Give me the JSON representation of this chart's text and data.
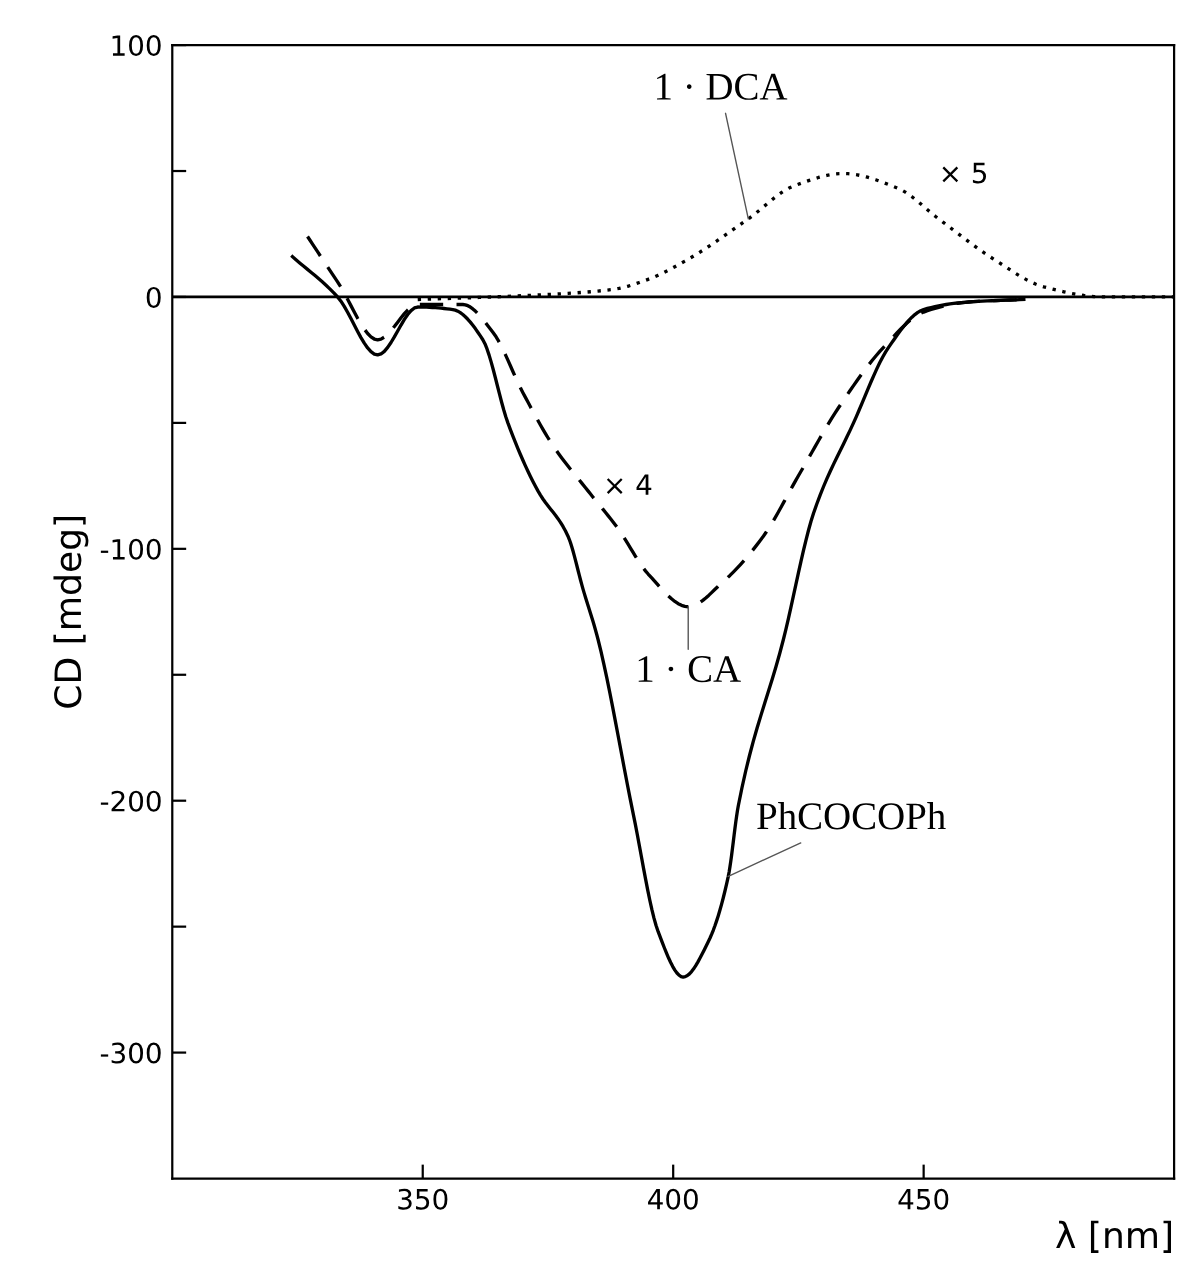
{
  "chart_data": {
    "type": "line",
    "xlabel": "λ [nm]",
    "ylabel": "CD [mdeg]",
    "xlim": [
      300,
      500
    ],
    "xticks": [
      350,
      400,
      450
    ],
    "ylim": [
      -350,
      100
    ],
    "yticks": [
      100,
      {
        "value": 50,
        "label": null
      },
      0,
      {
        "value": -50,
        "label": null
      },
      -100,
      {
        "value": -150,
        "label": null
      },
      -200,
      {
        "value": -250,
        "label": null
      },
      -300
    ],
    "grid": false,
    "legend": false,
    "ref_lines": [
      {
        "axis": "y",
        "value": 0,
        "color": "#000000",
        "line_style": "solid"
      }
    ],
    "annotations": [
      "× 5",
      "× 4"
    ],
    "series": [
      {
        "name": "1 · DCA",
        "color": "#000000",
        "line_style": "dotted",
        "x": [
          349,
          370,
          388,
          395,
          403,
          415,
          424,
          434,
          445,
          453,
          464,
          474,
          486,
          500
        ],
        "values": [
          -1,
          0.5,
          3,
          7,
          15,
          31,
          44,
          49,
          43,
          31,
          15,
          4,
          0,
          0
        ]
      },
      {
        "name": "1 · CA",
        "color": "#000000",
        "line_style": "dashed",
        "x": [
          327,
          333,
          341,
          349,
          358,
          364,
          370,
          376,
          383,
          389,
          395,
          403,
          410,
          418,
          425,
          433,
          442,
          450,
          459,
          470
        ],
        "values": [
          24,
          6,
          -17,
          -3,
          -3,
          -14,
          -38,
          -59,
          -77,
          -92,
          -110,
          -123,
          -113,
          -95,
          -71,
          -44,
          -20,
          -6,
          -2,
          -1
        ]
      },
      {
        "name": "PhCOCOPh",
        "color": "#000000",
        "line_style": "solid",
        "x": [
          324,
          333,
          341,
          349,
          356,
          362,
          367,
          373,
          379,
          382,
          385,
          392,
          397,
          402,
          407,
          411,
          413,
          422,
          428,
          436,
          443,
          450,
          459,
          470
        ],
        "values": [
          16,
          0,
          -23,
          -4,
          -5,
          -17,
          -50,
          -77,
          -95,
          -116,
          -136,
          -205,
          -252,
          -270,
          -256,
          -230,
          -202,
          -136,
          -86,
          -50,
          -20,
          -5,
          -2,
          -1
        ]
      }
    ]
  }
}
